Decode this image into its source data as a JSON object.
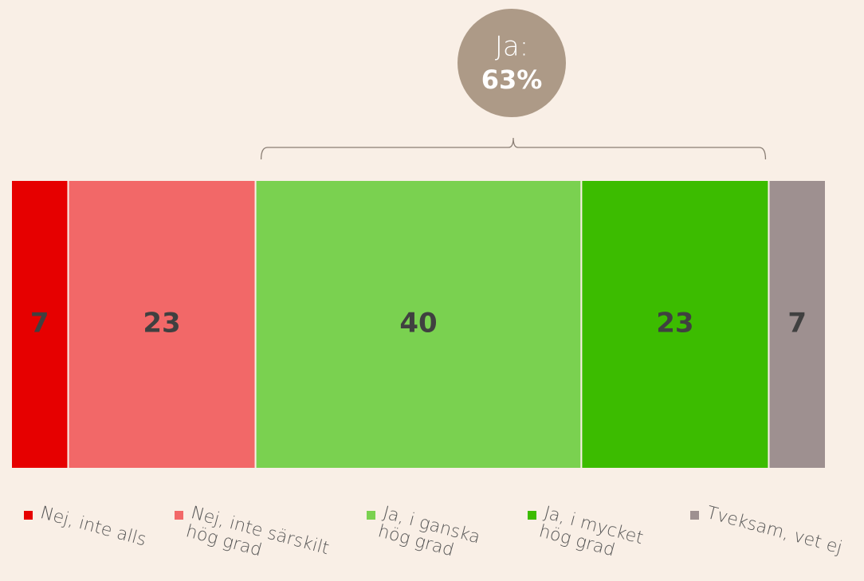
{
  "chart_data": {
    "type": "stacked-bar-horizontal",
    "categories": [
      null
    ],
    "series": [
      {
        "name": "Nej, inte alls",
        "color": "#e60000",
        "values": [
          7
        ]
      },
      {
        "name": "Nej, inte särskilt hög grad",
        "color": "#f26868",
        "values": [
          23
        ]
      },
      {
        "name": "Ja, i ganska hög grad",
        "color": "#7ad150",
        "values": [
          40
        ]
      },
      {
        "name": "Ja, i mycket hög grad",
        "color": "#3cbc00",
        "values": [
          23
        ]
      },
      {
        "name": "Tveksam, vet ej",
        "color": "#9e9090",
        "values": [
          7
        ]
      }
    ],
    "xlim": [
      0,
      100
    ],
    "annotation": {
      "title": "Ja:",
      "value": 63,
      "value_label": "63%",
      "color": "#ad9a87"
    }
  }
}
